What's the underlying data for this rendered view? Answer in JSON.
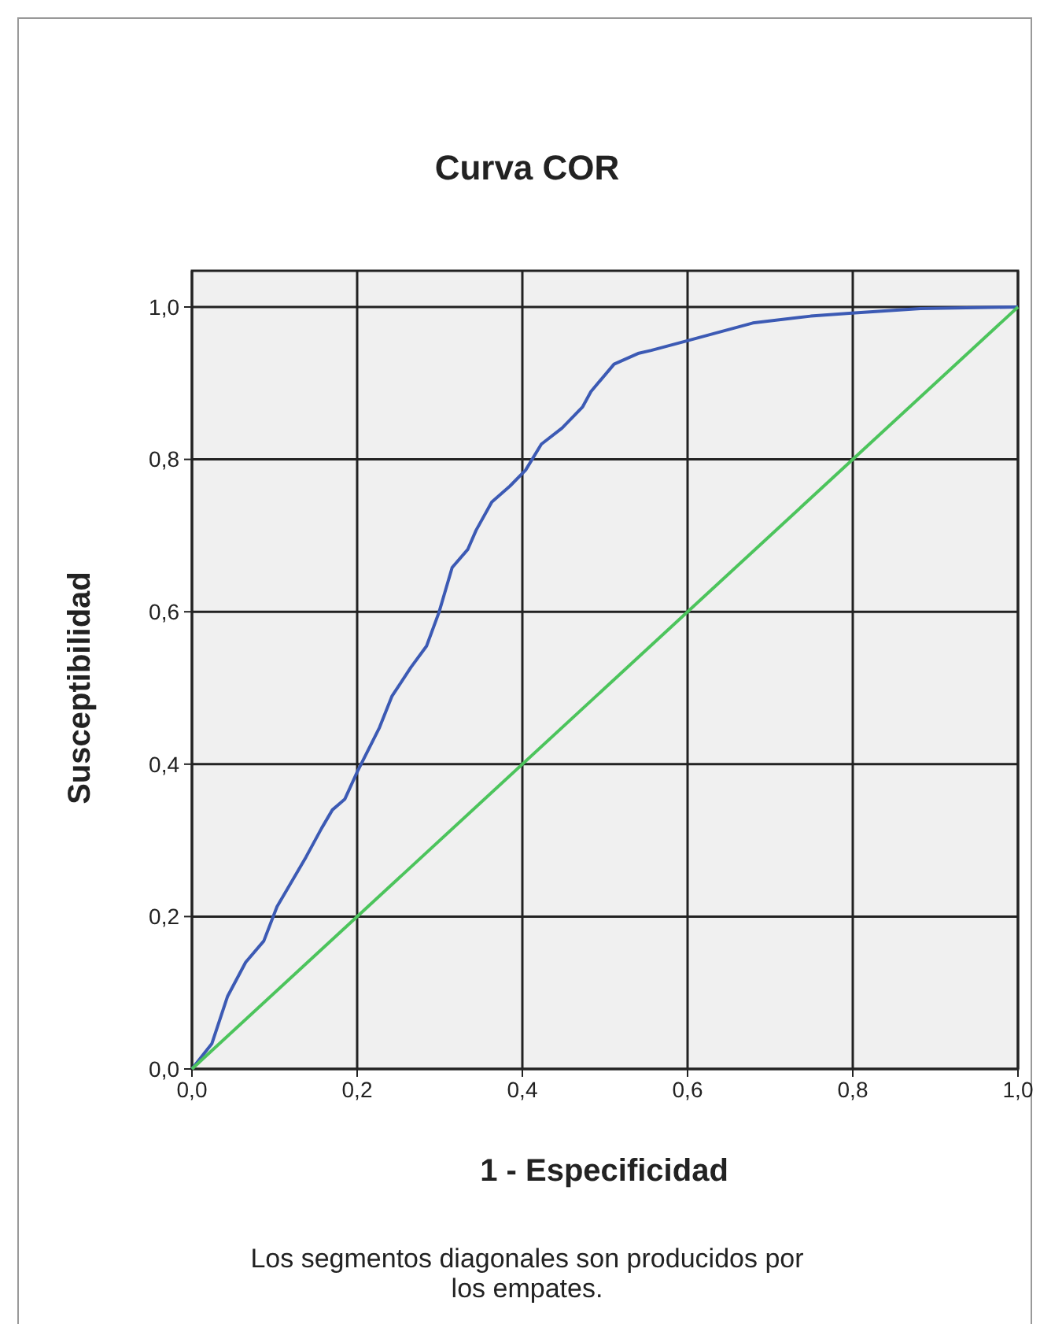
{
  "chart_data": {
    "type": "line",
    "title": "Curva COR",
    "xlabel": "1 - Especificidad",
    "ylabel": "Susceptibilidad",
    "annotations": [
      "Los segmentos diagonales son producidos por los empates."
    ],
    "xlim": [
      0,
      1
    ],
    "ylim": [
      0,
      1
    ],
    "xticks": [
      {
        "value": 0,
        "label": "0,0"
      },
      {
        "value": 0.2,
        "label": "0,2"
      },
      {
        "value": 0.4,
        "label": "0,4"
      },
      {
        "value": 0.6,
        "label": "0,6"
      },
      {
        "value": 0.8,
        "label": "0,8"
      },
      {
        "value": 1,
        "label": "1,0"
      }
    ],
    "yticks": [
      {
        "value": 0,
        "label": "0,0"
      },
      {
        "value": 0.2,
        "label": "0,2"
      },
      {
        "value": 0.4,
        "label": "0,4"
      },
      {
        "value": 0.6,
        "label": "0,6"
      },
      {
        "value": 0.8,
        "label": "0,8"
      },
      {
        "value": 1,
        "label": "1,0"
      }
    ],
    "grid": true,
    "marker": "none",
    "line_style": "solid",
    "series": [
      {
        "color": "#3c5ab4",
        "x": [
          0,
          0.024,
          0.043,
          0.065,
          0.087,
          0.103,
          0.116,
          0.138,
          0.157,
          0.17,
          0.185,
          0.201,
          0.227,
          0.242,
          0.265,
          0.284,
          0.299,
          0.315,
          0.334,
          0.344,
          0.363,
          0.385,
          0.404,
          0.423,
          0.448,
          0.473,
          0.483,
          0.511,
          0.54,
          0.556,
          0.597,
          0.679,
          0.749,
          0.799,
          0.882,
          1
        ],
        "values": [
          0,
          0.033,
          0.095,
          0.14,
          0.168,
          0.213,
          0.237,
          0.278,
          0.316,
          0.34,
          0.354,
          0.392,
          0.448,
          0.489,
          0.527,
          0.555,
          0.599,
          0.658,
          0.682,
          0.707,
          0.744,
          0.765,
          0.786,
          0.82,
          0.841,
          0.869,
          0.889,
          0.925,
          0.939,
          0.943,
          0.955,
          0.979,
          0.988,
          0.992,
          0.998,
          1
        ]
      },
      {
        "color": "#4cc45c",
        "x": [
          0,
          1
        ],
        "values": [
          0,
          1
        ]
      }
    ]
  }
}
